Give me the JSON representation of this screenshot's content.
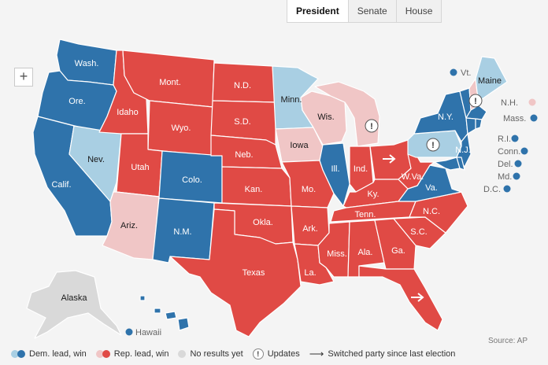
{
  "tabs": [
    {
      "label": "President",
      "active": true
    },
    {
      "label": "Senate",
      "active": false
    },
    {
      "label": "House",
      "active": false
    }
  ],
  "zoom": {
    "label": "+"
  },
  "colors": {
    "dem_win": "#2f73ab",
    "dem_lead": "#a9cfe3",
    "rep_win": "#e04a45",
    "rep_lead": "#f0c6c6",
    "no_results": "#d9d9d9",
    "background": "#f4f4f4"
  },
  "states": {
    "wa": {
      "label": "Wash.",
      "status": "dem_win"
    },
    "or": {
      "label": "Ore.",
      "status": "dem_win"
    },
    "ca": {
      "label": "Calif.",
      "status": "dem_win"
    },
    "nv": {
      "label": "Nev.",
      "status": "dem_lead"
    },
    "id": {
      "label": "Idaho",
      "status": "rep_win"
    },
    "mt": {
      "label": "Mont.",
      "status": "rep_win"
    },
    "wy": {
      "label": "Wyo.",
      "status": "rep_win"
    },
    "ut": {
      "label": "Utah",
      "status": "rep_win"
    },
    "az": {
      "label": "Ariz.",
      "status": "rep_lead"
    },
    "co": {
      "label": "Colo.",
      "status": "dem_win"
    },
    "nm": {
      "label": "N.M.",
      "status": "dem_win"
    },
    "nd": {
      "label": "N.D.",
      "status": "rep_win"
    },
    "sd": {
      "label": "S.D.",
      "status": "rep_win"
    },
    "ne": {
      "label": "Neb.",
      "status": "rep_win"
    },
    "ks": {
      "label": "Kan.",
      "status": "rep_win"
    },
    "ok": {
      "label": "Okla.",
      "status": "rep_win"
    },
    "tx": {
      "label": "Texas",
      "status": "rep_win"
    },
    "mn": {
      "label": "Minn.",
      "status": "dem_lead"
    },
    "ia": {
      "label": "Iowa",
      "status": "rep_lead"
    },
    "mo": {
      "label": "Mo.",
      "status": "rep_win"
    },
    "ar": {
      "label": "Ark.",
      "status": "rep_win"
    },
    "la": {
      "label": "La.",
      "status": "rep_win"
    },
    "wi": {
      "label": "Wis.",
      "status": "rep_lead"
    },
    "il": {
      "label": "Ill.",
      "status": "dem_win"
    },
    "mi": {
      "label": "",
      "status": "rep_lead"
    },
    "in": {
      "label": "Ind.",
      "status": "rep_win"
    },
    "oh": {
      "label": "",
      "status": "rep_win"
    },
    "ky": {
      "label": "Ky.",
      "status": "rep_win"
    },
    "tn": {
      "label": "Tenn.",
      "status": "rep_win"
    },
    "ms": {
      "label": "Miss.",
      "status": "rep_win"
    },
    "al": {
      "label": "Ala.",
      "status": "rep_win"
    },
    "ga": {
      "label": "Ga.",
      "status": "rep_win"
    },
    "fl": {
      "label": "",
      "status": "rep_win"
    },
    "sc": {
      "label": "S.C.",
      "status": "rep_win"
    },
    "nc": {
      "label": "N.C.",
      "status": "rep_win"
    },
    "va": {
      "label": "Va.",
      "status": "dem_win"
    },
    "wv": {
      "label": "W.Va.",
      "status": "rep_win"
    },
    "pa": {
      "label": "",
      "status": "dem_lead"
    },
    "ny": {
      "label": "N.Y.",
      "status": "dem_win"
    },
    "nj": {
      "label": "N.J.",
      "status": "dem_win"
    },
    "vt": {
      "label": "Vt.",
      "status": "dem_win"
    },
    "nh": {
      "label": "N.H.",
      "status": "rep_lead"
    },
    "me": {
      "label": "Maine",
      "status": "dem_lead"
    },
    "ma": {
      "label": "Mass.",
      "status": "dem_win"
    },
    "ri": {
      "label": "R.I.",
      "status": "dem_win"
    },
    "ct": {
      "label": "Conn.",
      "status": "dem_win"
    },
    "de": {
      "label": "Del.",
      "status": "dem_win"
    },
    "md": {
      "label": "Md.",
      "status": "dem_win"
    },
    "dc": {
      "label": "D.C.",
      "status": "dem_win"
    },
    "ak": {
      "label": "Alaska",
      "status": "no_results"
    },
    "hi": {
      "label": "Hawaii",
      "status": "dem_win"
    }
  },
  "legend": {
    "dem": "Dem. lead, win",
    "rep": "Rep. lead, win",
    "none": "No results yet",
    "updates": "Updates",
    "switched": "Switched party since last election"
  },
  "source": "Source: AP"
}
